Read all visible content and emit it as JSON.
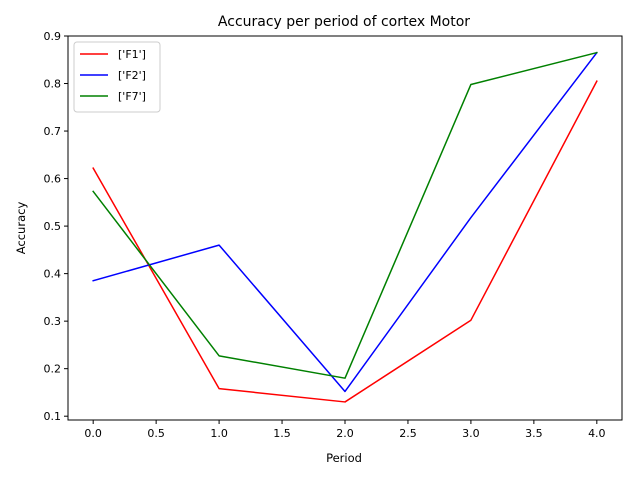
{
  "chart_data": {
    "type": "line",
    "title": "Accuracy per period of cortex Motor",
    "xlabel": "Period",
    "ylabel": "Accuracy",
    "x": [
      0,
      1,
      2,
      3,
      4
    ],
    "xlim": [
      -0.2,
      4.2
    ],
    "ylim": [
      0.092,
      0.9
    ],
    "xticks": [
      0.0,
      0.5,
      1.0,
      1.5,
      2.0,
      2.5,
      3.0,
      3.5,
      4.0
    ],
    "xtick_labels": [
      "0.0",
      "0.5",
      "1.0",
      "1.5",
      "2.0",
      "2.5",
      "3.0",
      "3.5",
      "4.0"
    ],
    "yticks": [
      0.1,
      0.2,
      0.3,
      0.4,
      0.5,
      0.6,
      0.7,
      0.8,
      0.9
    ],
    "ytick_labels": [
      "0.1",
      "0.2",
      "0.3",
      "0.4",
      "0.5",
      "0.6",
      "0.7",
      "0.8",
      "0.9"
    ],
    "grid": false,
    "legend_position": "top-left",
    "series": [
      {
        "name": "['F1']",
        "color": "#ff0000",
        "values": [
          0.622,
          0.158,
          0.13,
          0.302,
          0.805
        ]
      },
      {
        "name": "['F2']",
        "color": "#0000ff",
        "values": [
          0.385,
          0.46,
          0.152,
          0.518,
          0.865
        ]
      },
      {
        "name": "['F7']",
        "color": "#008000",
        "values": [
          0.573,
          0.227,
          0.18,
          0.798,
          0.865
        ]
      }
    ]
  }
}
